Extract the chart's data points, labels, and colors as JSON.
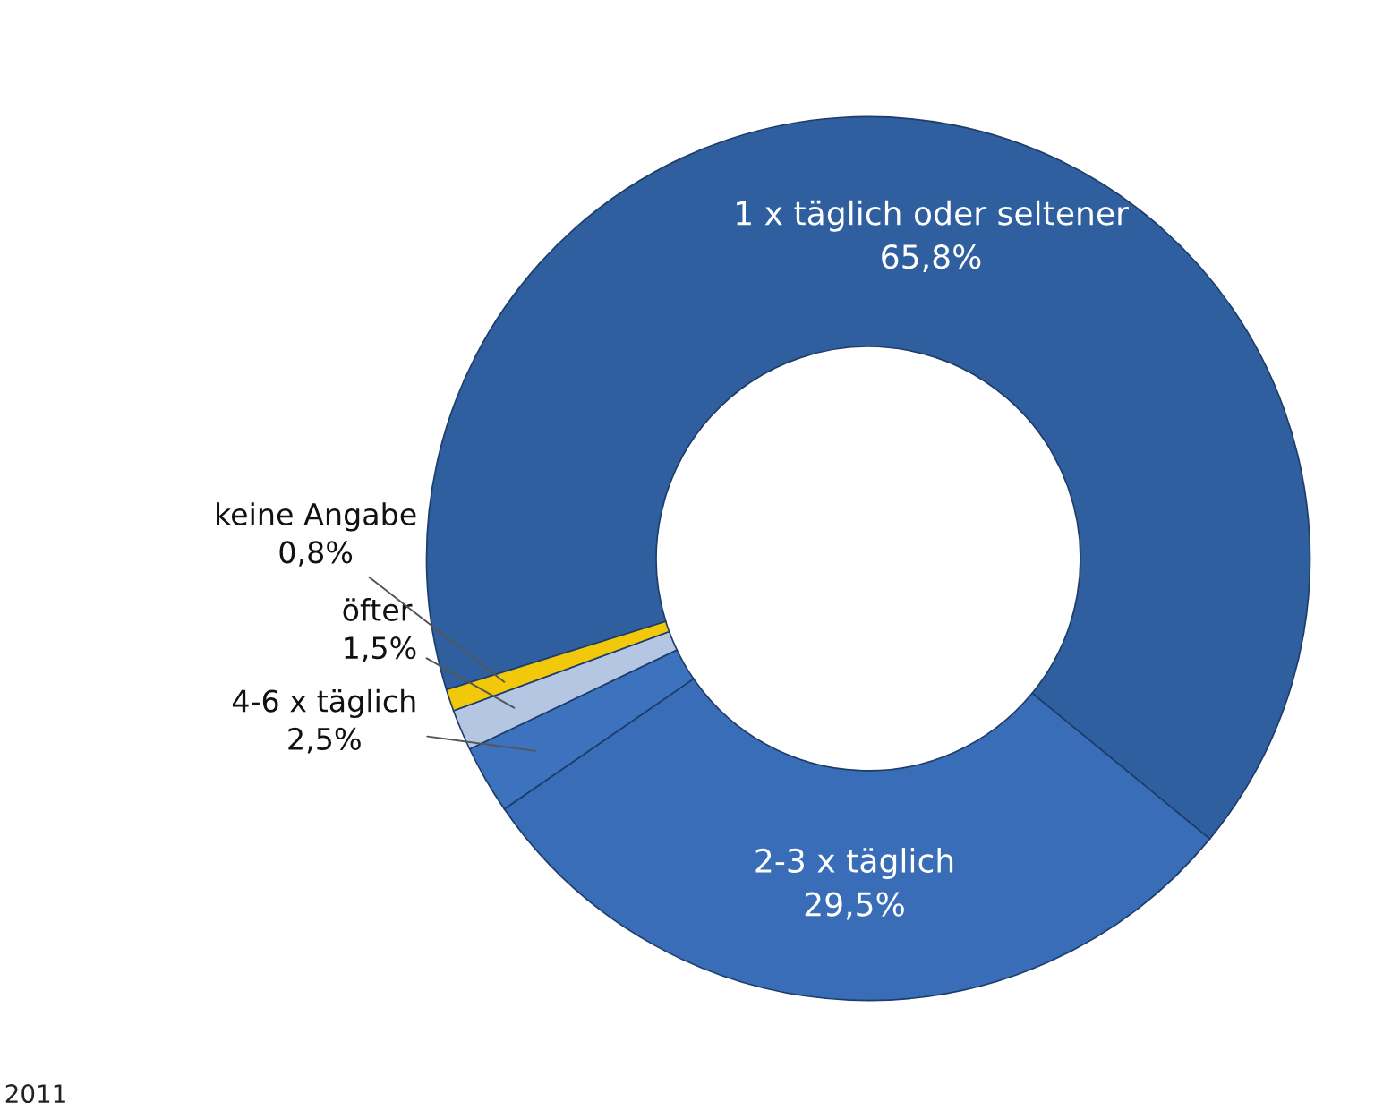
{
  "chart_data": {
    "type": "donut",
    "categories": [
      "1 x täglich oder seltener",
      "2-3 x täglich",
      "4-6 x täglich",
      "öfter",
      "keine Angabe"
    ],
    "values": [
      65.8,
      29.5,
      2.5,
      1.5,
      0.8
    ],
    "value_labels": [
      "65,8%",
      "29,5%",
      "2,5%",
      "1,5%",
      "0,8%"
    ],
    "colors": [
      "#2f5f9f",
      "#3a6db8",
      "#3d73be",
      "#b4c6e2",
      "#f2c80a"
    ],
    "legend": false,
    "annotations": [
      "2011"
    ]
  }
}
